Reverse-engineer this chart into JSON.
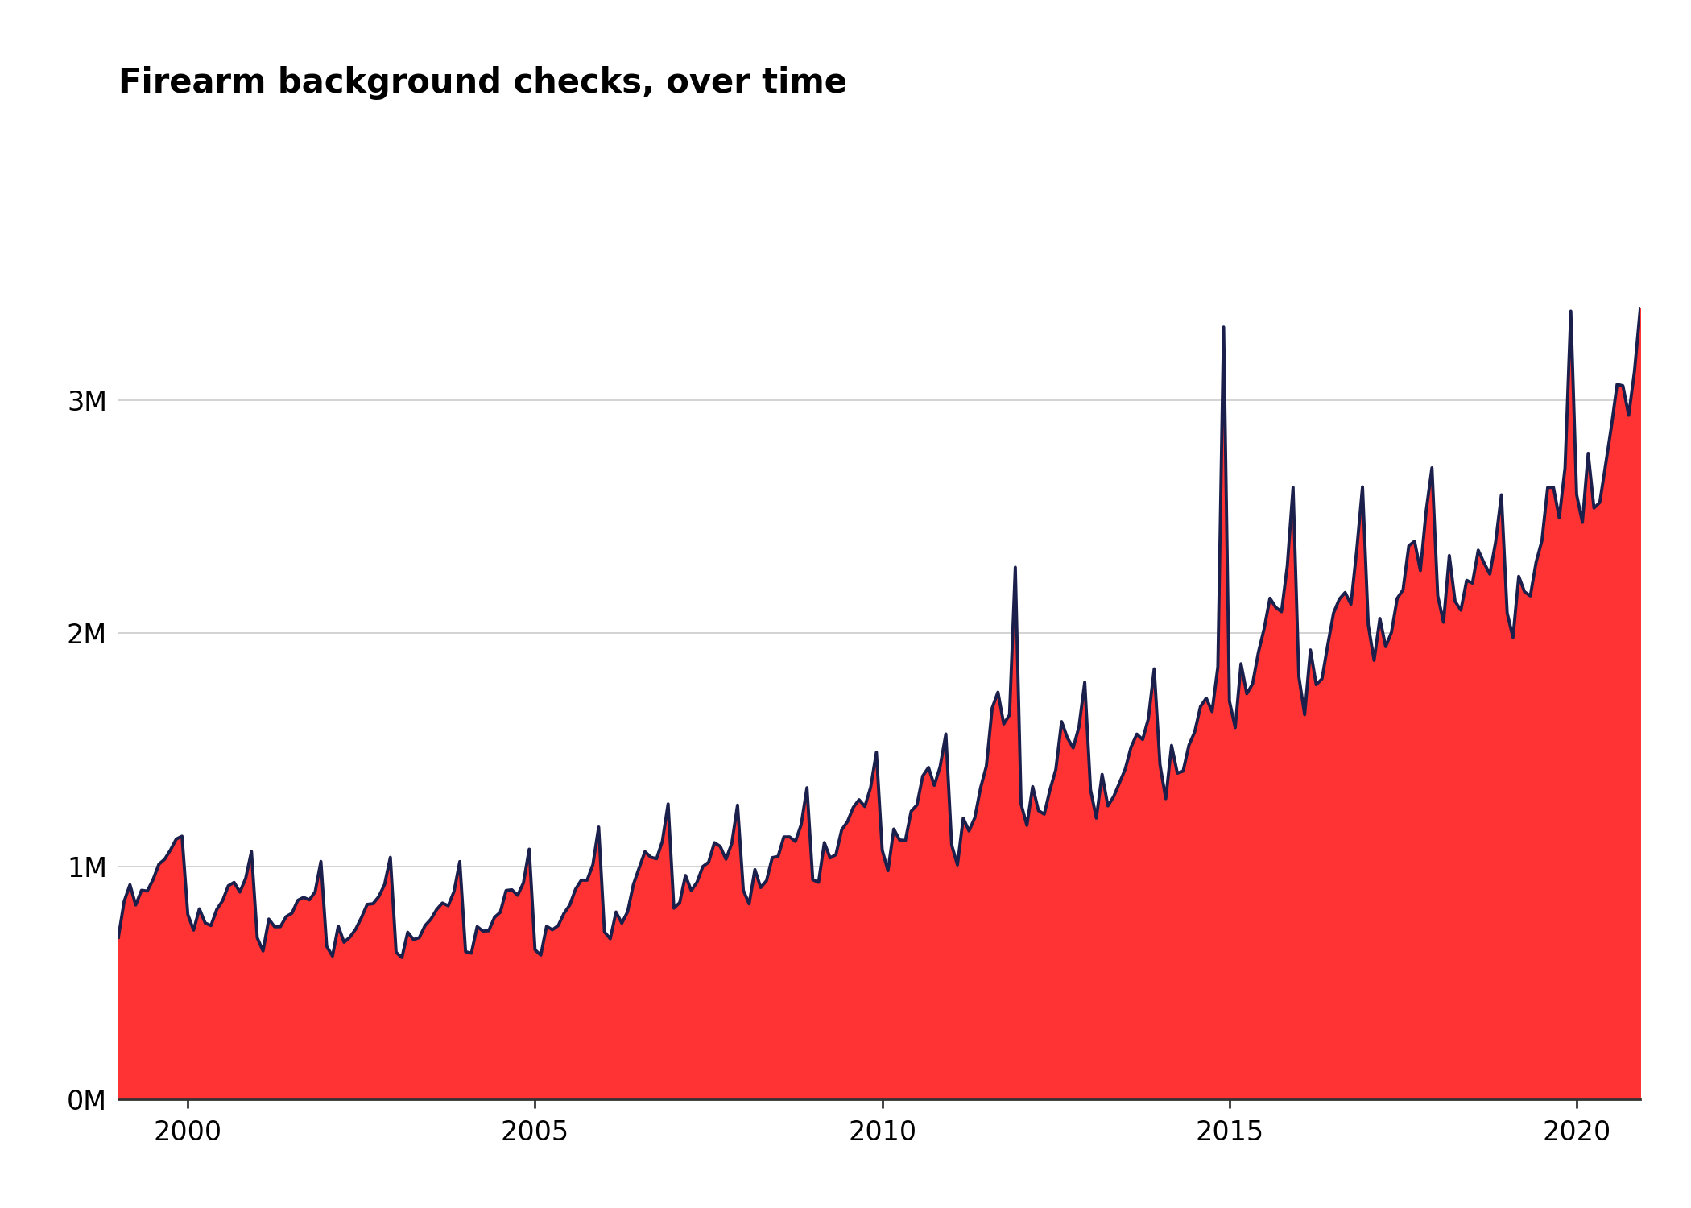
{
  "title": "Firearm background checks, over time",
  "title_fontsize": 30,
  "title_fontweight": "bold",
  "area_color": "#FF3333",
  "line_color": "#1a1f4b",
  "line_width": 2.8,
  "background_color": "#ffffff",
  "ylim": [
    0,
    4200000
  ],
  "yticks": [
    0,
    1000000,
    2000000,
    3000000
  ],
  "ytick_labels": [
    "0M",
    "1M",
    "2M",
    "3M"
  ],
  "grid_color": "#cccccc",
  "xtick_years": [
    2000,
    2005,
    2010,
    2015,
    2020
  ],
  "start_year": 1999,
  "start_month": 1,
  "monthly_data": [
    694976,
    849858,
    921009,
    834005,
    897045,
    893671,
    943445,
    1009024,
    1030366,
    1069994,
    1117125,
    1129333,
    793695,
    726268,
    817631,
    756772,
    745696,
    814685,
    852256,
    916506,
    931014,
    889765,
    948491,
    1063403,
    693055,
    636400,
    773541,
    740450,
    740969,
    784260,
    798804,
    854017,
    866700,
    856040,
    890272,
    1020648,
    656696,
    614674,
    743354,
    673827,
    695784,
    729897,
    779701,
    836817,
    839532,
    869987,
    921696,
    1038468,
    630894,
    608654,
    716866,
    685561,
    693897,
    745437,
    772906,
    814440,
    842530,
    830737,
    891682,
    1020440,
    633413,
    627282,
    741258,
    722052,
    723424,
    781006,
    802636,
    896065,
    899218,
    875607,
    928948,
    1073531,
    641534,
    618980,
    742617,
    727668,
    745426,
    797617,
    833538,
    901695,
    940817,
    940382,
    1006991,
    1168524,
    718543,
    688888,
    803818,
    755723,
    805006,
    921900,
    993551,
    1063060,
    1039195,
    1032450,
    1107155,
    1267938,
    820225,
    844226,
    960765,
    895822,
    932169,
    999149,
    1017487,
    1101534,
    1085806,
    1030416,
    1098294,
    1262862,
    897109,
    838714,
    986222,
    908828,
    938010,
    1037208,
    1042034,
    1126129,
    1126393,
    1106742,
    1179034,
    1337498,
    942194,
    931114,
    1101993,
    1036000,
    1050012,
    1156897,
    1191803,
    1252936,
    1285877,
    1256720,
    1338756,
    1489793,
    1069713,
    980895,
    1160025,
    1113183,
    1110684,
    1236030,
    1263536,
    1387609,
    1424283,
    1347321,
    1426937,
    1567866,
    1092014,
    1005979,
    1206889,
    1151826,
    1208553,
    1337007,
    1430060,
    1679246,
    1747666,
    1610940,
    1649740,
    2283765,
    1266965,
    1175750,
    1342229,
    1239469,
    1223701,
    1329197,
    1415397,
    1621178,
    1551694,
    1508259,
    1598427,
    1790690,
    1328753,
    1206919,
    1394765,
    1259423,
    1299462,
    1358034,
    1417794,
    1511336,
    1567545,
    1544081,
    1634041,
    1847573,
    1436695,
    1290285,
    1519180,
    1399781,
    1408613,
    1519890,
    1576826,
    1685985,
    1722048,
    1664014,
    1855492,
    3314594,
    1709536,
    1595516,
    1869455,
    1740573,
    1783061,
    1917499,
    2019428,
    2150819,
    2111738,
    2092619,
    2289465,
    2626829,
    1814199,
    1650996,
    1928655,
    1779547,
    1804860,
    1951125,
    2087403,
    2147055,
    2175505,
    2124871,
    2357491,
    2628841,
    2035279,
    1884002,
    2063700,
    1942677,
    2003777,
    2150400,
    2186535,
    2375422,
    2395519,
    2269536,
    2526073,
    2710395,
    2161367,
    2047659,
    2334168,
    2137252,
    2099401,
    2227534,
    2215398,
    2356826,
    2302658,
    2254087,
    2391467,
    2594559,
    2087505,
    1982030,
    2244793,
    2178165,
    2160741,
    2305344,
    2397380,
    2625928,
    2626463,
    2495031,
    2710559,
    3382769,
    2595622,
    2476130,
    2772915,
    2537863,
    2561660,
    2722602,
    2886156,
    3068866,
    3062695,
    2935842,
    3124968,
    3394085
  ]
}
